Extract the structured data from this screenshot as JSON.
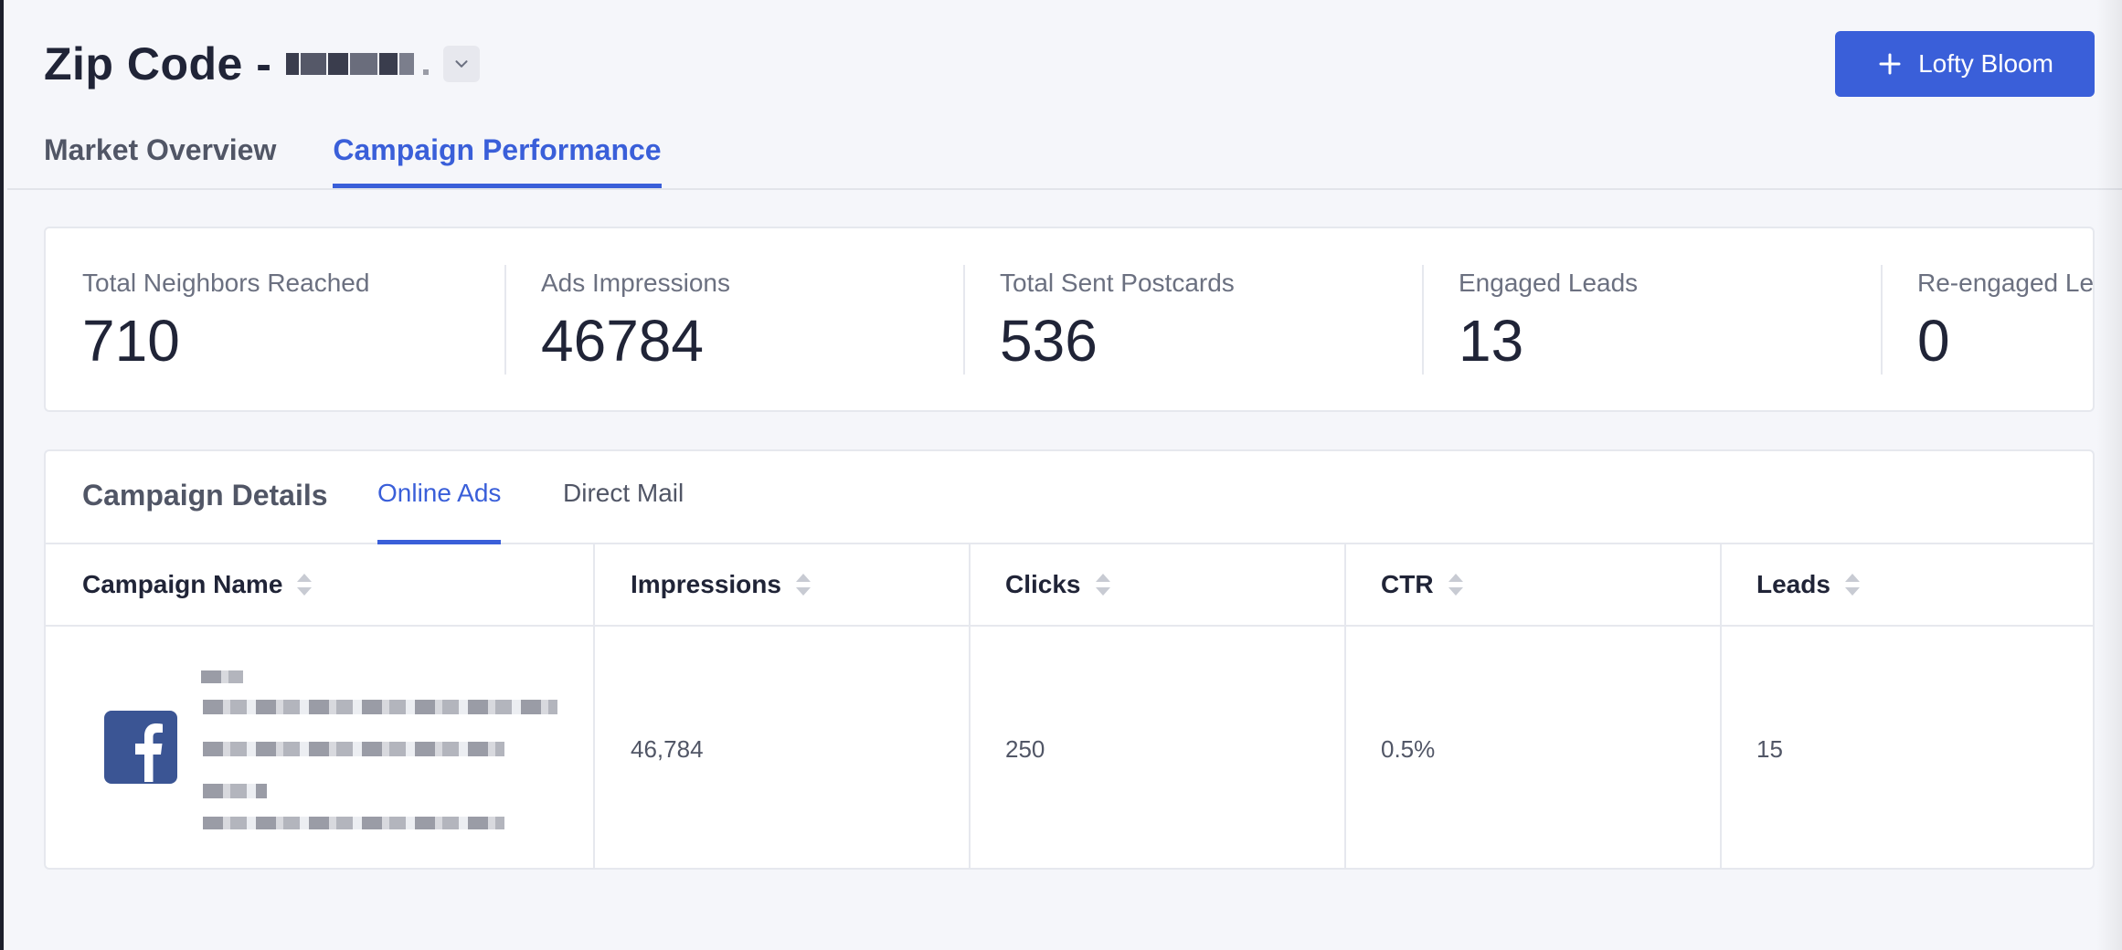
{
  "header": {
    "title": "Zip Code -",
    "primary_button_label": "Lofty Bloom"
  },
  "tabs": [
    {
      "label": "Market Overview",
      "active": false
    },
    {
      "label": "Campaign Performance",
      "active": true
    }
  ],
  "stats": [
    {
      "label": "Total Neighbors Reached",
      "value": "710"
    },
    {
      "label": "Ads Impressions",
      "value": "46784"
    },
    {
      "label": "Total Sent Postcards",
      "value": "536"
    },
    {
      "label": "Engaged Leads",
      "value": "13"
    },
    {
      "label": "Re-engaged Le",
      "value": "0"
    }
  ],
  "details": {
    "title": "Campaign Details",
    "sub_tabs": [
      {
        "label": "Online Ads",
        "active": true
      },
      {
        "label": "Direct Mail",
        "active": false
      }
    ],
    "columns": [
      "Campaign Name",
      "Impressions",
      "Clicks",
      "CTR",
      "Leads"
    ],
    "rows": [
      {
        "impressions": "46,784",
        "clicks": "250",
        "ctr": "0.5%",
        "leads": "15",
        "icon": "facebook-icon"
      }
    ]
  },
  "colors": {
    "accent": "#3a5fd9",
    "facebook": "#3b5594",
    "background": "#f5f6fa"
  }
}
